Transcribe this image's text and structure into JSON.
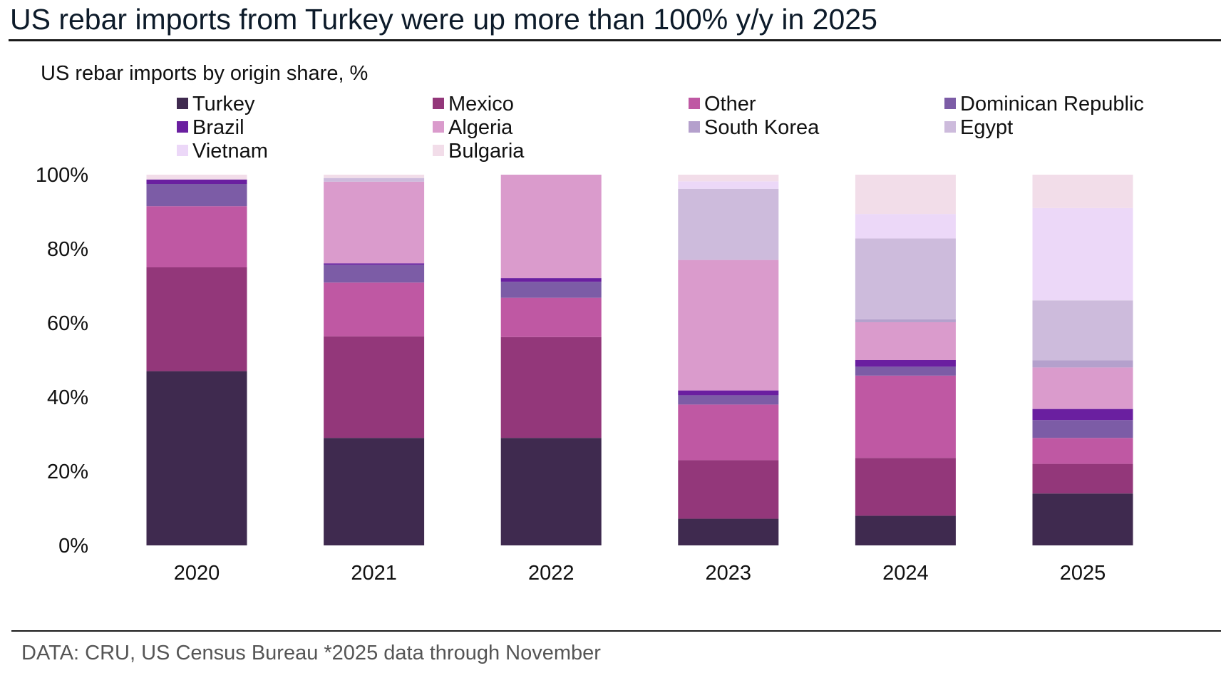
{
  "headline": "US rebar imports from Turkey were up more than 100% y/y in 2025",
  "source": "DATA:  CRU, US Census Bureau *2025 data through November",
  "chart_data": {
    "type": "bar",
    "stacked": true,
    "title": "US rebar imports by origin share, %",
    "xlabel": "",
    "ylabel": "",
    "ylim": [
      0,
      100
    ],
    "yticks": [
      0,
      20,
      40,
      60,
      80,
      100
    ],
    "ytick_labels": [
      "0%",
      "20%",
      "40%",
      "60%",
      "80%",
      "100%"
    ],
    "grid": false,
    "legend_position": "top",
    "categories": [
      "2020",
      "2021",
      "2022",
      "2023",
      "2024",
      "2025"
    ],
    "series": [
      {
        "name": "Turkey",
        "color": "#3f2a4f",
        "values": [
          47,
          29,
          29,
          7.2,
          8,
          14
        ]
      },
      {
        "name": "Mexico",
        "color": "#93377a",
        "values": [
          28,
          27.4,
          27.2,
          15.8,
          15.6,
          8
        ]
      },
      {
        "name": "Other",
        "color": "#bf58a3",
        "values": [
          16.5,
          14.5,
          10.6,
          15,
          22.2,
          7
        ]
      },
      {
        "name": "Dominican Republic",
        "color": "#7c5ca6",
        "values": [
          6,
          4.8,
          4.3,
          2.5,
          2.4,
          4.8
        ]
      },
      {
        "name": "Brazil",
        "color": "#6a1fa0",
        "values": [
          1.2,
          0.4,
          1,
          1.3,
          1.8,
          3
        ]
      },
      {
        "name": "Algeria",
        "color": "#da9bcc",
        "values": [
          0,
          22,
          27.9,
          35.2,
          10.2,
          11.2
        ]
      },
      {
        "name": "South Korea",
        "color": "#b4a0cc",
        "values": [
          0,
          0,
          0,
          0,
          0.8,
          1.9
        ]
      },
      {
        "name": "Egypt",
        "color": "#cdbbdc",
        "values": [
          0,
          1,
          0,
          19.2,
          21.8,
          16.2
        ]
      },
      {
        "name": "Vietnam",
        "color": "#ecd8f8",
        "values": [
          0,
          0,
          0,
          2,
          6.6,
          24.9
        ]
      },
      {
        "name": "Bulgaria",
        "color": "#f2dde9",
        "values": [
          1.3,
          0.9,
          0,
          1.8,
          10.6,
          9
        ]
      }
    ]
  }
}
